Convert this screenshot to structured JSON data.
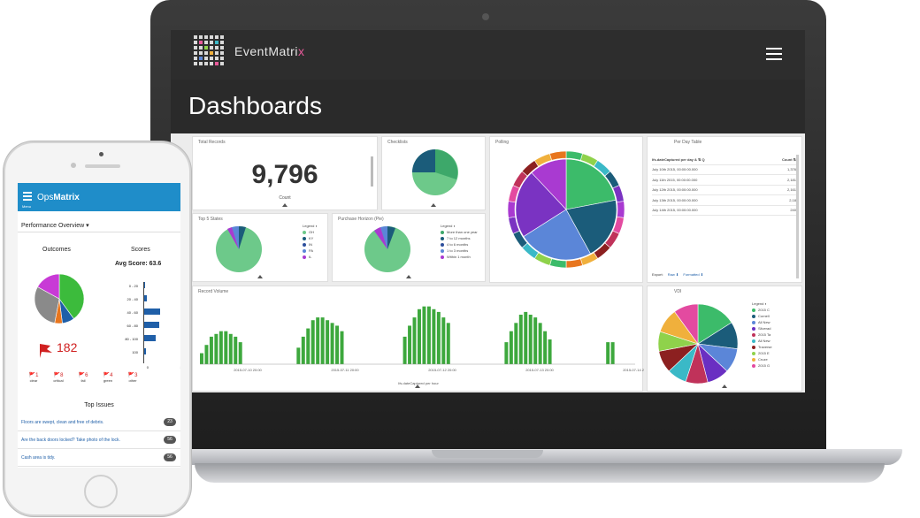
{
  "laptop": {
    "brand_event": "Event",
    "brand_matri": "Matri",
    "brand_x": "x",
    "page_title": "Dashboards",
    "panels": {
      "total_records": {
        "title": "Total Records",
        "value": "9,796",
        "sub": "Count"
      },
      "checklists": {
        "title": "Checklists"
      },
      "polling": {
        "title": "Polling"
      },
      "per_day_table": {
        "title": "Per Day Table",
        "col1": "Ifs.dateCaptured per day & ⇅ Q",
        "col2": "Count ⇅",
        "rows": [
          [
            "July 10th 2015, 00:00:00.000",
            "1,376"
          ],
          [
            "July 11th 2015, 00:00:00.000",
            "2,181"
          ],
          [
            "July 12th 2015, 00:00:00.000",
            "2,161"
          ],
          [
            "July 13th 2015, 00:00:00.000",
            "2,18"
          ],
          [
            "July 14th 2015, 00:00:00.000",
            "240"
          ]
        ],
        "footer_export": "Export:",
        "footer_raw": "Raw ⬇",
        "footer_formatted": "Formatted ⬇"
      },
      "top5_states": {
        "title": "Top 5 States",
        "legend_title": "Legend ◐",
        "legend": [
          "OH",
          "KY",
          "IN",
          "PA",
          "IL"
        ]
      },
      "purchase_horizon": {
        "title": "Purchase Horizon (Pie)",
        "legend_title": "Legend ◐",
        "legend": [
          "More than one year",
          "7 to 12 months",
          "4 to 6 months",
          "1 to 3 months",
          "Within 1 month"
        ]
      },
      "record_volume": {
        "title": "Record Volume",
        "x_ticks": [
          "2015-07-10 20:00",
          "2015-07-11 20:00",
          "2015-07-12 20:00",
          "2015-07-13 20:00",
          "2015-07-14 20:00"
        ],
        "x_title": "Ifs.dateCaptured per hour"
      },
      "vdi": {
        "title": "VDI",
        "legend_title": "Legend ◐",
        "legend": [
          "2015 C",
          "Cornell",
          "All New",
          "Silverad",
          "2015 Ta",
          "All New",
          "Traverse",
          "2015 E",
          "Cruze",
          "2015 G"
        ]
      }
    }
  },
  "phone": {
    "brand_ops": "Ops",
    "brand_matrix": "Matrix",
    "menu_label": "Menu",
    "section_title": "Performance Overview ▾",
    "outcomes_label": "Outcomes",
    "scores_label": "Scores",
    "avg_score": "Avg Score: 63.6",
    "flag_count": "182",
    "score_buckets": [
      "0 - 20",
      "20 - 40",
      "40 - 60",
      "60 - 80",
      "80 - 100",
      "100"
    ],
    "score_axis": [
      "0",
      "10"
    ],
    "flags": [
      "🚩1",
      "🚩8",
      "🚩6",
      "🚩4",
      "🚩3"
    ],
    "flag_labels": [
      "clear",
      "critical",
      "fail",
      "green",
      "other"
    ],
    "top_issues_title": "Top Issues",
    "issues": [
      {
        "text": "Floors are swept, clean and free of debris.",
        "count": "23"
      },
      {
        "text": "Are the back doors locked? Take photo of the lock.",
        "count": "56"
      },
      {
        "text": "Cash area is tidy.",
        "count": "56"
      }
    ]
  },
  "colors": {
    "accent_blue": "#1f8dc9",
    "chart_green": "#3da83d",
    "flag_red": "#d02020"
  },
  "chart_data": [
    {
      "type": "bar",
      "title": "Record Volume",
      "xlabel": "Ifs.dateCaptured per hour",
      "series": [
        {
          "values": [
            8,
            14,
            20,
            22,
            24,
            24,
            22,
            20,
            16,
            0,
            0,
            0,
            0,
            0,
            0,
            0,
            0,
            0,
            0,
            0,
            12,
            20,
            26,
            32,
            34,
            34,
            32,
            30,
            28,
            24,
            0,
            0,
            0,
            0,
            0,
            0,
            0,
            0,
            0,
            0,
            0,
            0,
            20,
            28,
            34,
            40,
            42,
            42,
            40,
            38,
            34,
            30,
            0,
            0,
            0,
            0,
            0,
            0,
            0,
            0,
            0,
            0,
            0,
            16,
            24,
            30,
            36,
            38,
            36,
            34,
            30,
            24,
            18,
            0,
            0,
            0,
            0,
            0,
            0,
            0,
            0,
            0,
            0,
            0,
            16,
            16,
            0,
            0,
            0,
            0
          ]
        }
      ],
      "x_ticks": [
        "2015-07-10 20:00",
        "2015-07-11 20:00",
        "2015-07-12 20:00",
        "2015-07-13 20:00",
        "2015-07-14 20:00"
      ]
    },
    {
      "type": "pie",
      "title": "Polling",
      "slices": [
        {
          "value": 22,
          "color": "#3cbb6a"
        },
        {
          "value": 20,
          "color": "#1b5c7a"
        },
        {
          "value": 24,
          "color": "#5b86d8"
        },
        {
          "value": 22,
          "color": "#7a33c2"
        },
        {
          "value": 12,
          "color": "#a93ad1"
        }
      ]
    },
    {
      "type": "pie",
      "title": "VDI",
      "slices": [
        {
          "value": 16,
          "color": "#3cbb6a"
        },
        {
          "value": 11,
          "color": "#1b5c7a"
        },
        {
          "value": 10,
          "color": "#5b86d8"
        },
        {
          "value": 9,
          "color": "#6a2fc2"
        },
        {
          "value": 9,
          "color": "#c0325a"
        },
        {
          "value": 8,
          "color": "#3ab9c7"
        },
        {
          "value": 9,
          "color": "#8c2020"
        },
        {
          "value": 8,
          "color": "#8fd24b"
        },
        {
          "value": 10,
          "color": "#f0b03c"
        },
        {
          "value": 10,
          "color": "#e34aa0"
        }
      ]
    },
    {
      "type": "pie",
      "title": "Outcomes",
      "slices": [
        {
          "value": 40,
          "color": "#3cbb3c"
        },
        {
          "value": 8,
          "color": "#1f5fa8"
        },
        {
          "value": 5,
          "color": "#e8761e"
        },
        {
          "value": 30,
          "color": "#8a8a8a"
        },
        {
          "value": 17,
          "color": "#c83ad6"
        }
      ]
    },
    {
      "type": "bar",
      "title": "Scores",
      "categories": [
        "0 - 20",
        "20 - 40",
        "40 - 60",
        "60 - 80",
        "80 - 100",
        "100"
      ],
      "values": [
        0.3,
        0.8,
        4.5,
        4.2,
        3.2,
        0.6
      ],
      "xlim": [
        0,
        10
      ]
    }
  ]
}
